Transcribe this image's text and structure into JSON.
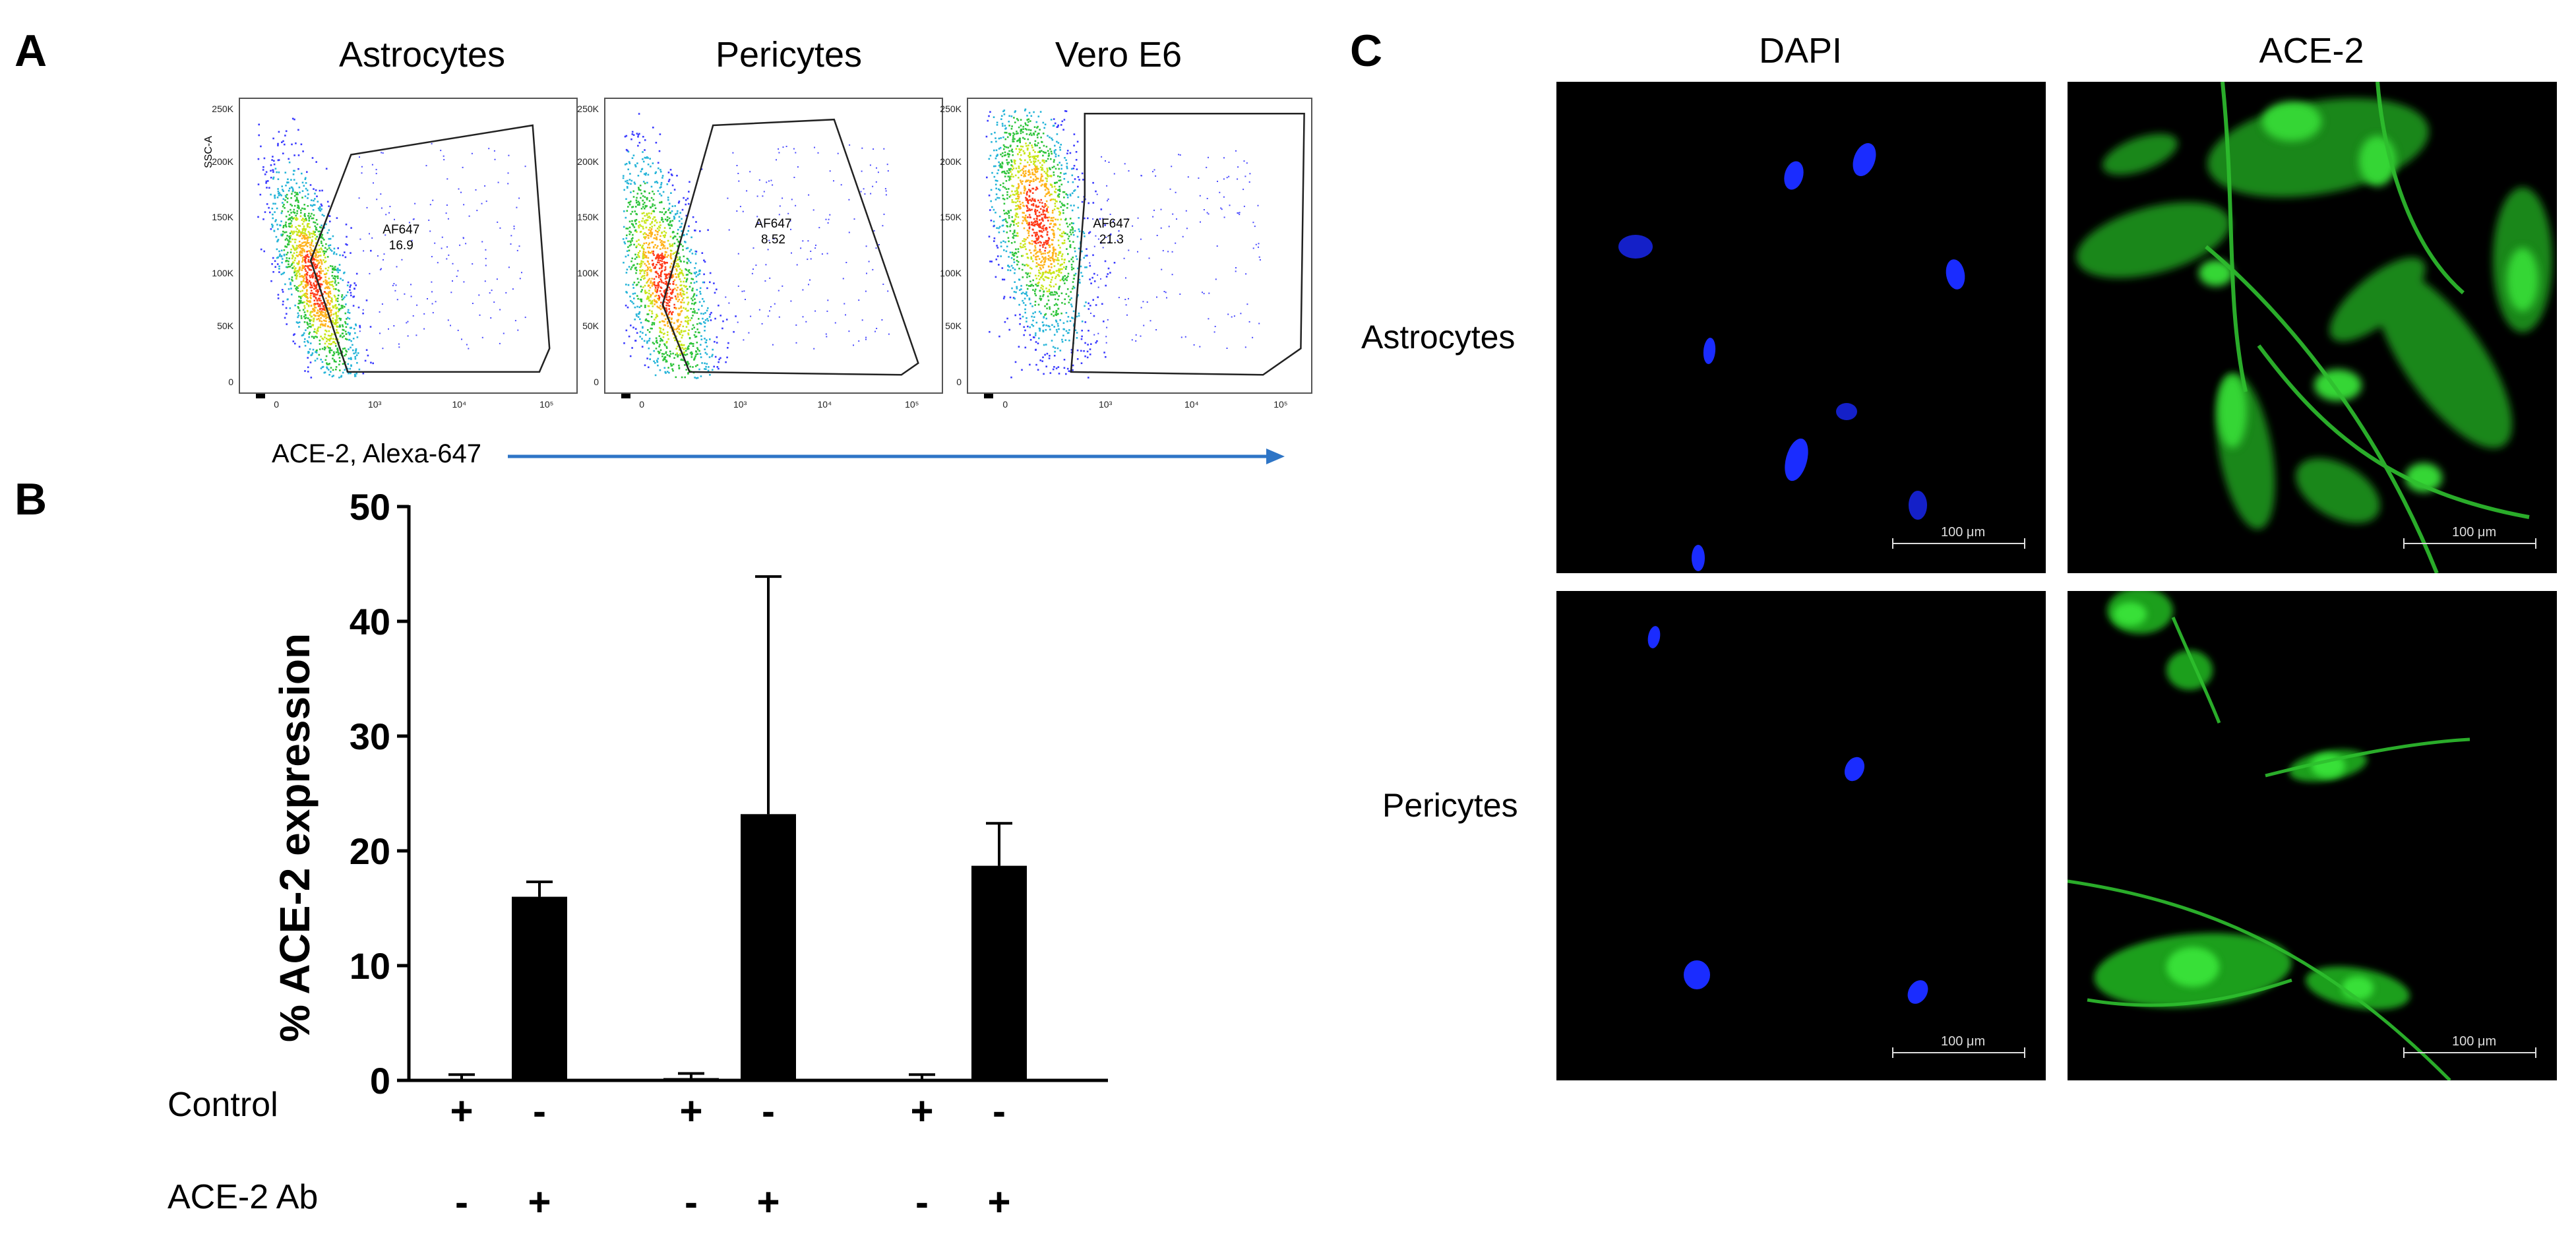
{
  "panels": {
    "a": {
      "letter": "A"
    },
    "b": {
      "letter": "B"
    },
    "c": {
      "letter": "C"
    }
  },
  "flow": {
    "y_axis_label": "SSC-A",
    "y_ticks": [
      "250K",
      "200K",
      "150K",
      "100K",
      "50K",
      "0"
    ],
    "x_ticks": [
      "0",
      "10³",
      "10⁴",
      "10⁵"
    ],
    "x_axis_title": "ACE-2, Alexa-647",
    "arrow_color": "#2e75c6",
    "plots": [
      {
        "title": "Astrocytes",
        "gate_name": "AF647",
        "gate_value": "16.9"
      },
      {
        "title": "Pericytes",
        "gate_name": "AF647",
        "gate_value": "8.52"
      },
      {
        "title": "Vero E6",
        "gate_name": "AF647",
        "gate_value": "21.3"
      }
    ]
  },
  "chart_data": {
    "type": "bar",
    "ylabel": "% ACE-2 expression",
    "ylim": [
      0,
      50
    ],
    "yticks": [
      0,
      10,
      20,
      30,
      40,
      50
    ],
    "row_labels": [
      "Control",
      "ACE-2 Ab"
    ],
    "bars": [
      {
        "control": "+",
        "ab": "-",
        "value": 0.1,
        "error": 0.4
      },
      {
        "control": "-",
        "ab": "+",
        "value": 16.0,
        "error": 1.3
      },
      {
        "control": "+",
        "ab": "-",
        "value": 0.2,
        "error": 0.4
      },
      {
        "control": "-",
        "ab": "+",
        "value": 23.2,
        "error": 20.7
      },
      {
        "control": "+",
        "ab": "-",
        "value": 0.1,
        "error": 0.4
      },
      {
        "control": "-",
        "ab": "+",
        "value": 18.7,
        "error": 3.7
      }
    ],
    "bar_color": "#000000"
  },
  "micro": {
    "columns": [
      "DAPI",
      "ACE-2"
    ],
    "rows": [
      "Astrocytes",
      "Pericytes"
    ],
    "scale_bar": "100 μm",
    "dapi_color": "#1a2cff",
    "ace2_color": "#2fd12f"
  }
}
